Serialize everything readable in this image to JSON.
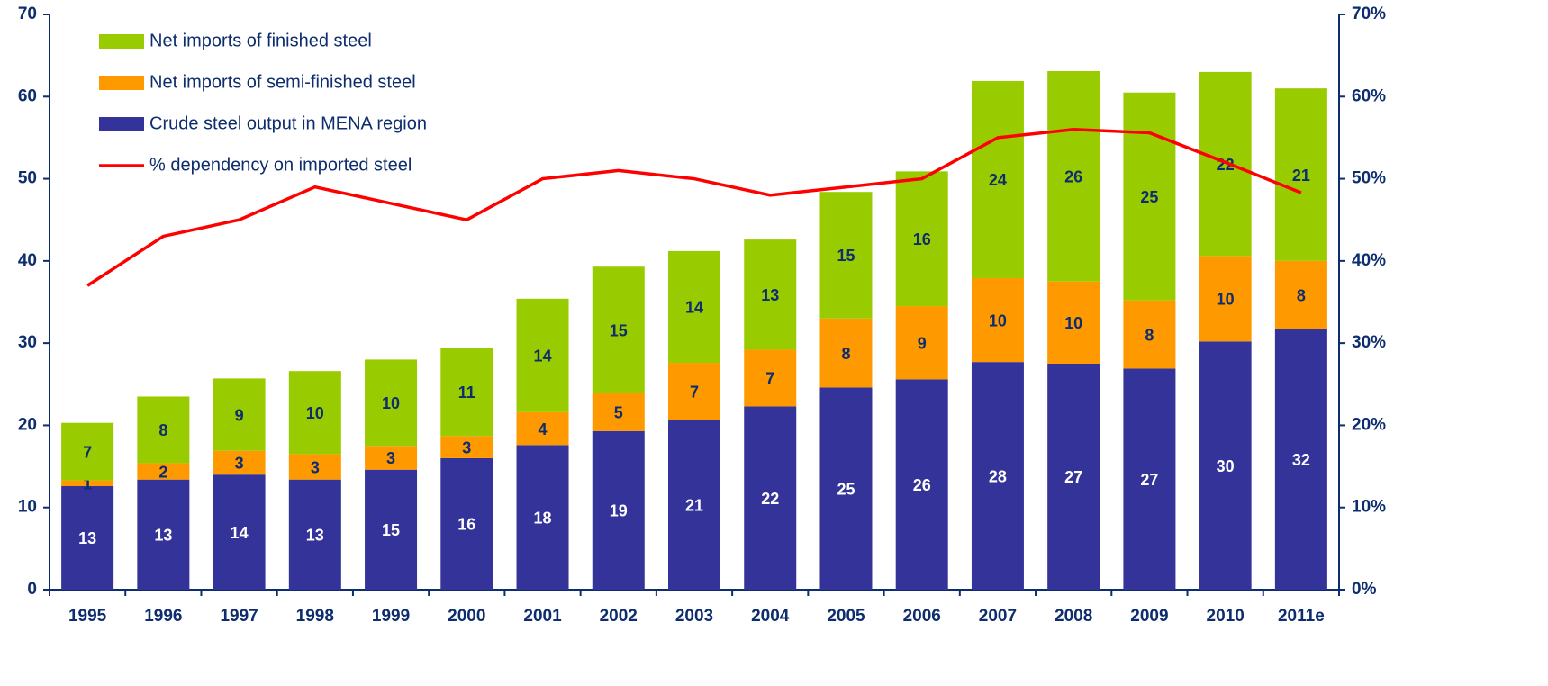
{
  "chart_data": {
    "type": "bar",
    "categories": [
      "1995",
      "1996",
      "1997",
      "1998",
      "1999",
      "2000",
      "2001",
      "2002",
      "2003",
      "2004",
      "2005",
      "2006",
      "2007",
      "2008",
      "2009",
      "2010",
      "2011e"
    ],
    "stacked": true,
    "series": [
      {
        "name": "Crude steel output in MENA region",
        "color": "#333399",
        "label_color": "#ffffff",
        "values": [
          12.6,
          13.4,
          14.0,
          13.4,
          14.6,
          16.0,
          17.6,
          19.3,
          20.7,
          22.3,
          24.6,
          25.6,
          27.7,
          27.5,
          26.9,
          30.2,
          31.7
        ],
        "value_labels": [
          "13",
          "13",
          "14",
          "13",
          "15",
          "16",
          "18",
          "19",
          "21",
          "22",
          "25",
          "26",
          "28",
          "27",
          "27",
          "30",
          "32"
        ]
      },
      {
        "name": "Net imports of semi-finished steel",
        "color": "#ff9900",
        "label_color": "#0d2d6e",
        "values": [
          0.7,
          2.0,
          2.9,
          3.1,
          2.9,
          2.7,
          4.0,
          4.6,
          6.9,
          6.9,
          8.4,
          8.9,
          10.2,
          10.0,
          8.3,
          10.4,
          8.3
        ],
        "value_labels": [
          "1",
          "2",
          "3",
          "3",
          "3",
          "3",
          "4",
          "5",
          "7",
          "7",
          "8",
          "9",
          "10",
          "10",
          "8",
          "10",
          "8"
        ]
      },
      {
        "name": "Net imports of finished steel",
        "color": "#99cc00",
        "label_color": "#0d2d6e",
        "values": [
          7.0,
          8.1,
          8.8,
          10.1,
          10.5,
          10.7,
          13.8,
          15.4,
          13.6,
          13.4,
          15.4,
          16.4,
          24.0,
          25.6,
          25.3,
          22.4,
          21.0
        ],
        "value_labels": [
          "7",
          "8",
          "9",
          "10",
          "10",
          "11",
          "14",
          "15",
          "14",
          "13",
          "15",
          "16",
          "24",
          "26",
          "25",
          "22",
          "21"
        ]
      },
      {
        "name": "% dependency on imported steel",
        "type": "line",
        "axis": "y2",
        "color": "#ff0000",
        "values": [
          37,
          43,
          45,
          49,
          47,
          45,
          50,
          51,
          50,
          48,
          49,
          50,
          55,
          56,
          55.6,
          52,
          48.3
        ]
      }
    ],
    "ylim": [
      0,
      70
    ],
    "yticks": [
      0,
      10,
      20,
      30,
      40,
      50,
      60,
      70
    ],
    "y2lim": [
      0,
      70
    ],
    "y2ticks": [
      {
        "value": 0,
        "label": "0%"
      },
      {
        "value": 10,
        "label": "10%"
      },
      {
        "value": 20,
        "label": "20%"
      },
      {
        "value": 30,
        "label": "30%"
      },
      {
        "value": 40,
        "label": "40%"
      },
      {
        "value": 50,
        "label": "50%"
      },
      {
        "value": 60,
        "label": "60%"
      },
      {
        "value": 70,
        "label": "70%"
      }
    ],
    "legend": "top-left",
    "grid": false
  }
}
